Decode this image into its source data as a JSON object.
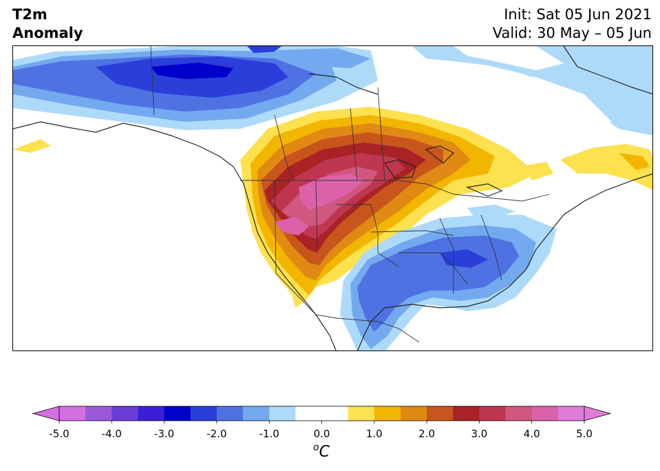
{
  "header": {
    "variable": "T2m",
    "field": "Anomaly",
    "init": "Init: Sat 05 Jun 2021",
    "valid": "Valid: 30 May – 05 Jun"
  },
  "colorbar": {
    "unit_base": "o",
    "unit_letter": "C",
    "ticks": [
      "-5.0",
      "-4.0",
      "-3.0",
      "-2.0",
      "-1.0",
      "0.0",
      "1.0",
      "2.0",
      "3.0",
      "4.0",
      "5.0"
    ],
    "levels_min": -5.0,
    "levels_max": 5.0,
    "level_step": 0.5,
    "extend": "both",
    "colors": [
      "#d46fe0",
      "#9a5ad8",
      "#6a3dd8",
      "#3a1fd6",
      "#0000cc",
      "#2a3fda",
      "#4f72e3",
      "#73a9ef",
      "#aedaf9",
      "#ffffff",
      "#ffffff",
      "#fde14e",
      "#f3b600",
      "#e08a14",
      "#c8561c",
      "#a82226",
      "#bf3650",
      "#d0577e",
      "#db62a8",
      "#e07cd8"
    ],
    "under_color": "#d46fe0",
    "over_color": "#e07cd8"
  },
  "map": {
    "projection": "Lambert conformal, North America",
    "legend": "none",
    "anomaly_centers": [
      {
        "region": "Northern Alaska / Yukon",
        "sign": "cold",
        "peak_c": -3.0
      },
      {
        "region": "Great Basin / Northern Rockies",
        "sign": "warm",
        "peak_c": 4.5
      },
      {
        "region": "Northern Plains / Ontario",
        "sign": "warm",
        "peak_c": 3.0
      },
      {
        "region": "Southern Plains / Texas",
        "sign": "cold",
        "peak_c": -2.0
      },
      {
        "region": "Southeast US / Mid-Atlantic",
        "sign": "cold",
        "peak_c": -2.0
      },
      {
        "region": "Labrador / Quebec",
        "sign": "warm",
        "peak_c": 1.0
      }
    ]
  }
}
